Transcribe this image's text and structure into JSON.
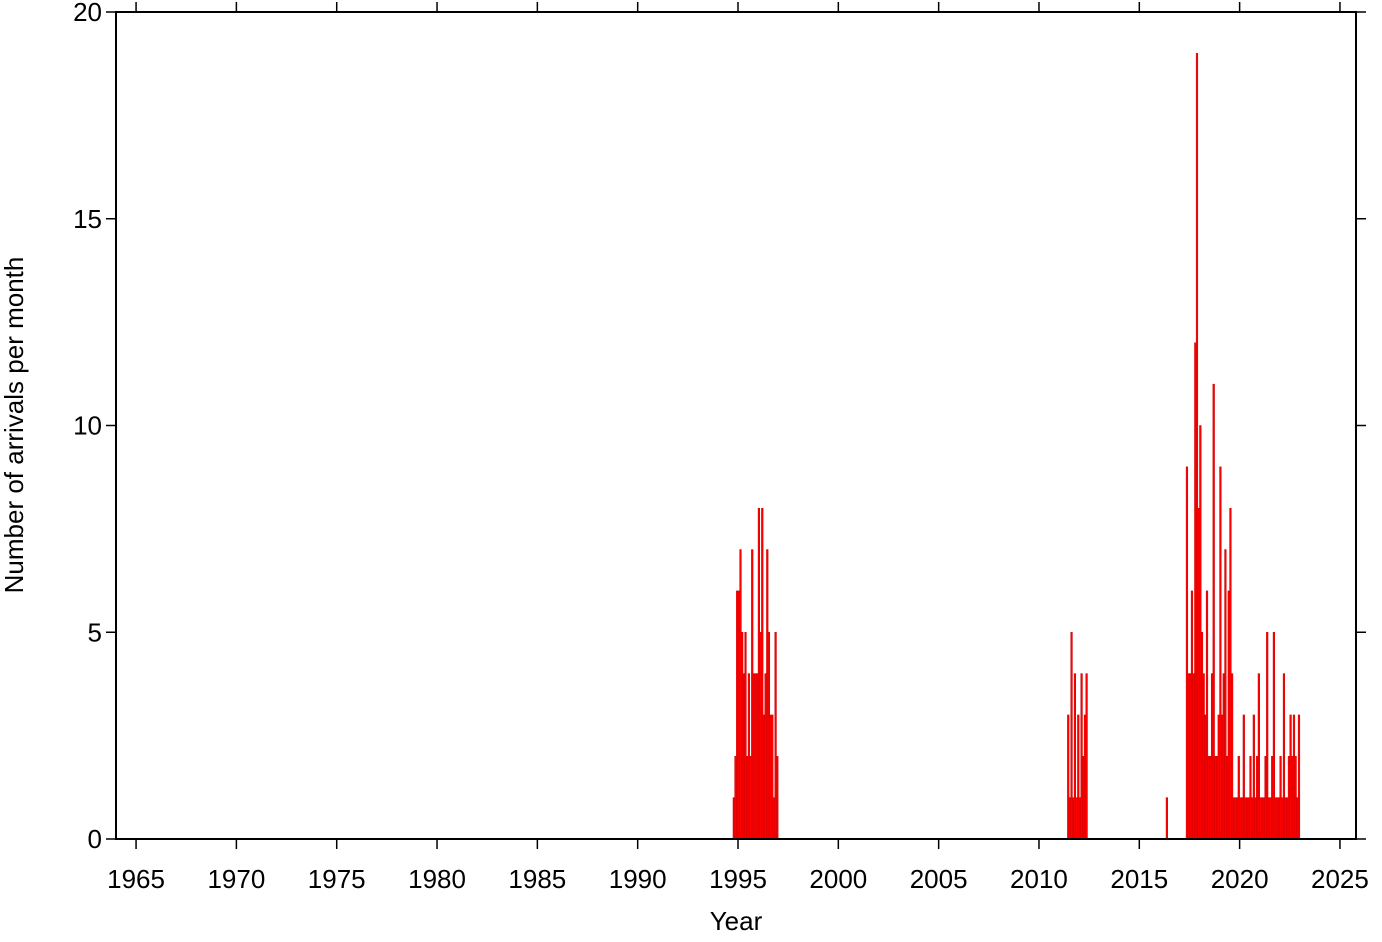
{
  "chart_data": {
    "type": "bar",
    "x_label": "Year",
    "y_label": "Number of arrivals per month",
    "color": "#ff0000",
    "xlim": [
      1964,
      2025.8
    ],
    "ylim": [
      0,
      20
    ],
    "xticks": [
      1965,
      1970,
      1975,
      1980,
      1985,
      1990,
      1995,
      2000,
      2005,
      2010,
      2015,
      2020,
      2025
    ],
    "yticks": [
      0,
      5,
      10,
      15,
      20
    ],
    "x": [
      1994.75,
      1994.833,
      1994.917,
      1995.0,
      1995.083,
      1995.167,
      1995.25,
      1995.333,
      1995.417,
      1995.5,
      1995.583,
      1995.667,
      1995.75,
      1995.833,
      1995.917,
      1996.0,
      1996.083,
      1996.167,
      1996.25,
      1996.333,
      1996.417,
      1996.5,
      1996.583,
      1996.667,
      1996.75,
      1996.833,
      1996.917,
      2011.417,
      2011.5,
      2011.583,
      2011.667,
      2011.75,
      2011.833,
      2011.917,
      2012.0,
      2012.083,
      2012.167,
      2012.25,
      2012.333,
      2016.333,
      2017.333,
      2017.417,
      2017.5,
      2017.583,
      2017.667,
      2017.75,
      2017.833,
      2017.917,
      2018.0,
      2018.083,
      2018.167,
      2018.25,
      2018.333,
      2018.417,
      2018.5,
      2018.583,
      2018.667,
      2018.75,
      2018.833,
      2018.917,
      2019.0,
      2019.083,
      2019.167,
      2019.25,
      2019.333,
      2019.417,
      2019.5,
      2019.583,
      2019.667,
      2019.75,
      2019.833,
      2019.917,
      2020.0,
      2020.083,
      2020.167,
      2020.25,
      2020.333,
      2020.417,
      2020.5,
      2020.583,
      2020.667,
      2020.75,
      2020.833,
      2020.917,
      2021.0,
      2021.083,
      2021.167,
      2021.25,
      2021.333,
      2021.417,
      2021.5,
      2021.583,
      2021.667,
      2021.75,
      2021.833,
      2021.917,
      2022.0,
      2022.083,
      2022.167,
      2022.25,
      2022.333,
      2022.417,
      2022.5,
      2022.583,
      2022.667,
      2022.75,
      2022.833,
      2022.917
    ],
    "values": [
      1,
      2,
      6,
      6,
      7,
      5,
      4,
      5,
      2,
      4,
      2,
      7,
      4,
      4,
      4,
      8,
      5,
      8,
      3,
      4,
      7,
      5,
      3,
      3,
      1,
      5,
      2,
      3,
      1,
      5,
      1,
      4,
      1,
      3,
      1,
      4,
      2,
      3,
      4,
      1,
      9,
      4,
      4,
      6,
      4,
      12,
      19,
      8,
      10,
      5,
      4,
      3,
      6,
      2,
      2,
      4,
      11,
      2,
      2,
      3,
      9,
      3,
      4,
      7,
      2,
      6,
      8,
      4,
      1,
      1,
      1,
      2,
      1,
      1,
      3,
      1,
      1,
      1,
      2,
      1,
      3,
      1,
      2,
      4,
      1,
      1,
      1,
      2,
      5,
      1,
      1,
      2,
      5,
      1,
      1,
      1,
      2,
      1,
      4,
      1,
      1,
      2,
      3,
      2,
      3,
      2,
      1,
      3
    ]
  }
}
